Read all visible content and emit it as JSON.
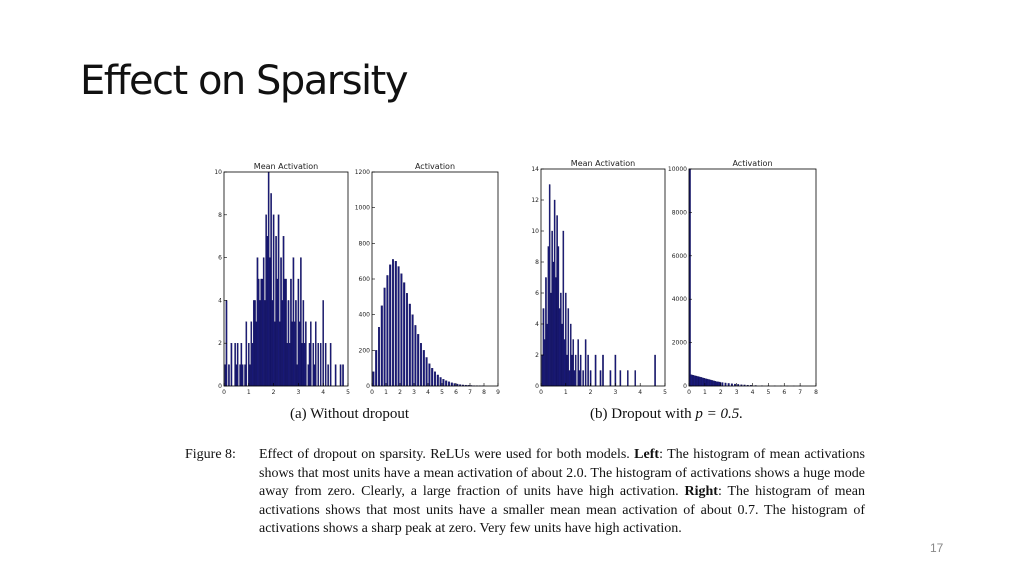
{
  "slide": {
    "title": "Effect on Sparsity",
    "page_number": "17"
  },
  "figure": {
    "subcaption_a": "(a) Without dropout",
    "subcaption_b_prefix": "(b) Dropout with ",
    "subcaption_b_math": "p = 0.5.",
    "caption_label": "Figure 8:",
    "caption_parts": [
      {
        "text": "Effect of dropout on sparsity. ReLUs were used for both models. ",
        "bold": false
      },
      {
        "text": "Left",
        "bold": true
      },
      {
        "text": ": The histogram of mean activations shows that most units have a mean activation of about 2.0. The histogram of activations shows a huge mode away from zero. Clearly, a large fraction of units have high activation. ",
        "bold": false
      },
      {
        "text": "Right",
        "bold": true
      },
      {
        "text": ": The histogram of mean activations shows that most units have a smaller mean mean activation of about 0.7. The histogram of activations shows a sharp peak at zero. Very few units have high activation.",
        "bold": false
      }
    ]
  },
  "chart_data": [
    {
      "type": "bar",
      "title": "Mean Activation",
      "xlim": [
        0,
        5
      ],
      "ylim": [
        0,
        10
      ],
      "xticks": [
        0,
        1,
        2,
        3,
        4,
        5
      ],
      "yticks": [
        0,
        2,
        4,
        6,
        8,
        10
      ],
      "bin_width": 0.05,
      "x": [
        0.05,
        0.1,
        0.2,
        0.3,
        0.45,
        0.5,
        0.55,
        0.65,
        0.7,
        0.75,
        0.85,
        0.9,
        1.0,
        1.05,
        1.1,
        1.15,
        1.2,
        1.25,
        1.3,
        1.35,
        1.4,
        1.45,
        1.5,
        1.55,
        1.6,
        1.65,
        1.7,
        1.75,
        1.8,
        1.85,
        1.9,
        1.95,
        2.0,
        2.05,
        2.1,
        2.15,
        2.2,
        2.25,
        2.3,
        2.35,
        2.4,
        2.45,
        2.5,
        2.55,
        2.6,
        2.65,
        2.7,
        2.75,
        2.8,
        2.85,
        2.9,
        2.95,
        3.0,
        3.05,
        3.1,
        3.15,
        3.2,
        3.25,
        3.3,
        3.4,
        3.45,
        3.5,
        3.6,
        3.65,
        3.7,
        3.8,
        3.9,
        4.0,
        4.1,
        4.2,
        4.3,
        4.5,
        4.7,
        4.8
      ],
      "values": [
        1,
        4,
        1,
        2,
        2,
        1,
        2,
        1,
        2,
        1,
        1,
        3,
        2,
        1,
        3,
        2,
        4,
        4,
        3,
        6,
        5,
        4,
        5,
        5,
        6,
        4,
        8,
        7,
        10,
        6,
        9,
        4,
        8,
        3,
        7,
        5,
        8,
        3,
        6,
        4,
        7,
        5,
        5,
        2,
        4,
        2,
        5,
        3,
        6,
        3,
        4,
        1,
        5,
        3,
        6,
        2,
        4,
        2,
        3,
        1,
        2,
        3,
        2,
        1,
        3,
        2,
        2,
        4,
        2,
        1,
        2,
        1,
        1,
        1
      ]
    },
    {
      "type": "bar",
      "title": "Activation",
      "xlim": [
        0,
        9
      ],
      "ylim": [
        0,
        1200
      ],
      "xticks": [
        0,
        1,
        2,
        3,
        4,
        5,
        6,
        7,
        8,
        9
      ],
      "yticks": [
        0,
        200,
        400,
        600,
        800,
        1000,
        1200
      ],
      "bin_width": 0.12,
      "x": [
        0.1,
        0.3,
        0.5,
        0.7,
        0.9,
        1.1,
        1.3,
        1.5,
        1.7,
        1.9,
        2.1,
        2.3,
        2.5,
        2.7,
        2.9,
        3.1,
        3.3,
        3.5,
        3.7,
        3.9,
        4.1,
        4.3,
        4.5,
        4.7,
        4.9,
        5.1,
        5.3,
        5.5,
        5.7,
        5.9,
        6.1,
        6.3,
        6.5,
        6.7,
        6.9,
        7.1,
        7.3,
        7.5,
        7.7,
        7.9
      ],
      "values": [
        80,
        200,
        330,
        450,
        550,
        620,
        680,
        710,
        700,
        670,
        630,
        580,
        520,
        460,
        400,
        340,
        290,
        240,
        200,
        160,
        125,
        100,
        80,
        62,
        48,
        38,
        30,
        24,
        18,
        14,
        11,
        8,
        6,
        5,
        4,
        3,
        2,
        2,
        1,
        1
      ]
    },
    {
      "type": "bar",
      "title": "Mean Activation",
      "xlim": [
        0,
        5
      ],
      "ylim": [
        0,
        14
      ],
      "xticks": [
        0,
        1,
        2,
        3,
        4,
        5
      ],
      "yticks": [
        0,
        2,
        4,
        6,
        8,
        10,
        12,
        14
      ],
      "bin_width": 0.05,
      "x": [
        0.05,
        0.1,
        0.15,
        0.2,
        0.25,
        0.3,
        0.35,
        0.4,
        0.45,
        0.5,
        0.55,
        0.6,
        0.65,
        0.7,
        0.75,
        0.8,
        0.85,
        0.9,
        0.95,
        1.0,
        1.05,
        1.1,
        1.15,
        1.2,
        1.25,
        1.3,
        1.35,
        1.4,
        1.5,
        1.55,
        1.6,
        1.7,
        1.8,
        1.9,
        2.0,
        2.2,
        2.4,
        2.5,
        2.8,
        3.0,
        3.2,
        3.5,
        3.8,
        4.6
      ],
      "values": [
        2,
        5,
        3,
        7,
        4,
        9,
        13,
        6,
        10,
        8,
        12,
        7,
        11,
        9,
        5,
        6,
        4,
        10,
        3,
        6,
        2,
        5,
        1,
        4,
        2,
        3,
        1,
        2,
        3,
        1,
        2,
        1,
        3,
        2,
        1,
        2,
        1,
        2,
        1,
        2,
        1,
        1,
        1,
        2
      ]
    },
    {
      "type": "bar",
      "title": "Activation",
      "xlim": [
        0,
        8
      ],
      "ylim": [
        0,
        10000
      ],
      "xticks": [
        0,
        1,
        2,
        3,
        4,
        5,
        6,
        7,
        8
      ],
      "yticks": [
        0,
        2000,
        4000,
        6000,
        8000,
        10000
      ],
      "bin_width": 0.1,
      "x": [
        0.05,
        0.15,
        0.25,
        0.35,
        0.45,
        0.55,
        0.65,
        0.75,
        0.85,
        0.95,
        1.05,
        1.15,
        1.25,
        1.35,
        1.45,
        1.55,
        1.65,
        1.75,
        1.85,
        1.95,
        2.1,
        2.3,
        2.5,
        2.7,
        2.9,
        3.1,
        3.3,
        3.5,
        3.7,
        3.9,
        4.2,
        4.6,
        5.0,
        5.4,
        5.8,
        6.2,
        6.6,
        7.0
      ],
      "values": [
        10000,
        520,
        500,
        480,
        460,
        440,
        420,
        400,
        380,
        360,
        340,
        320,
        300,
        280,
        260,
        240,
        220,
        200,
        190,
        180,
        160,
        140,
        120,
        105,
        90,
        75,
        62,
        50,
        40,
        32,
        24,
        16,
        10,
        7,
        5,
        3,
        2,
        1
      ]
    }
  ]
}
